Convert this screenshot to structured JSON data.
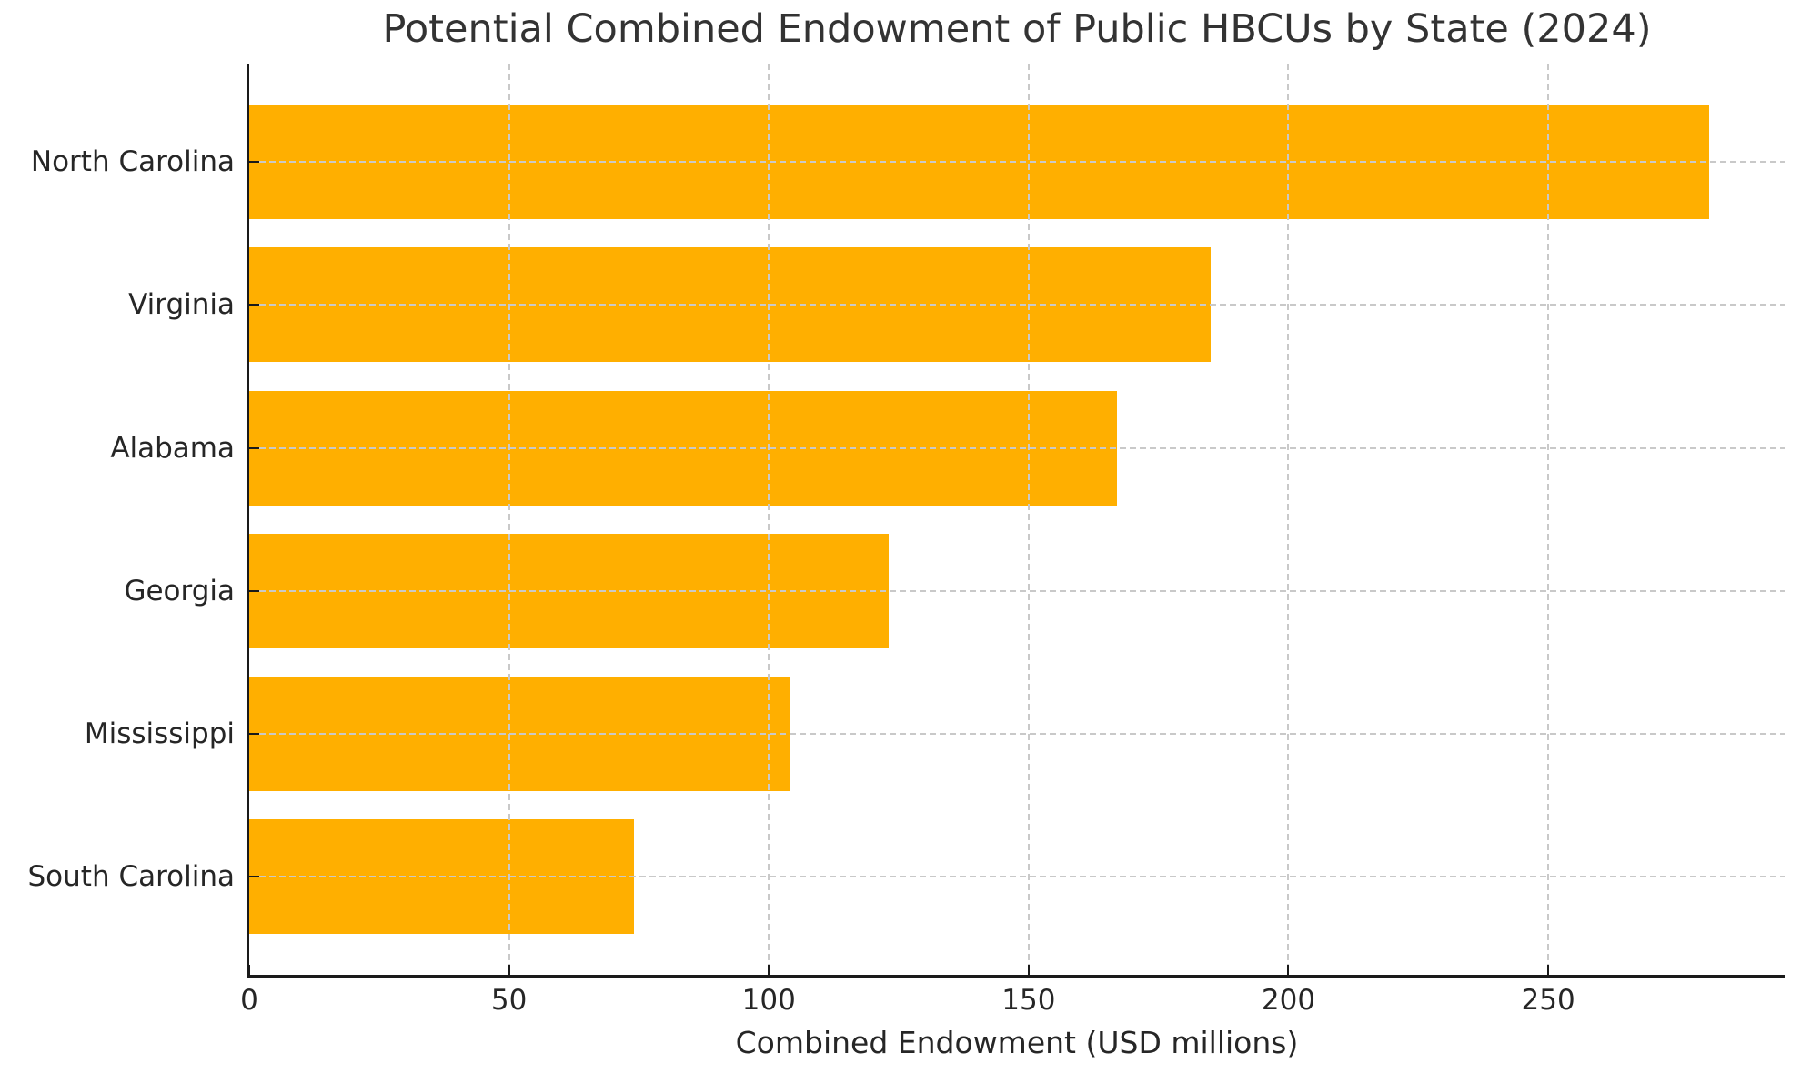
{
  "chart_data": {
    "type": "bar",
    "orientation": "horizontal",
    "title": "Potential Combined Endowment of Public HBCUs by State (2024)",
    "xlabel": "Combined Endowment (USD millions)",
    "ylabel": "",
    "categories": [
      "North Carolina",
      "Virginia",
      "Alabama",
      "Georgia",
      "Mississippi",
      "South Carolina"
    ],
    "values": [
      281,
      185,
      167,
      123,
      104,
      74
    ],
    "x_ticks": [
      0,
      50,
      100,
      150,
      200,
      250
    ],
    "xlim": [
      0,
      295.5
    ],
    "bar_color": "#FFAF00",
    "grid": "dashed, both axes, drawn above bars",
    "gridline_color": "#C9C9C9",
    "tick_direction": "in",
    "spines": [
      "left",
      "bottom"
    ],
    "legend": "none",
    "background_color": "#FFFFFF",
    "text_color": "#262626"
  }
}
